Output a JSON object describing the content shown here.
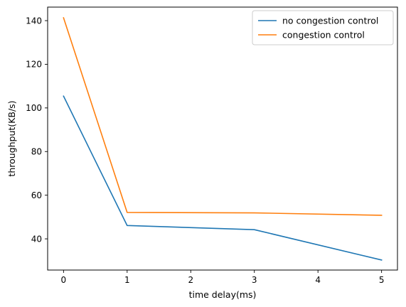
{
  "chart_data": {
    "type": "line",
    "title": "",
    "xlabel": "time delay(ms)",
    "ylabel": "throughput(KB/s)",
    "xlim": [
      -0.25,
      5.25
    ],
    "ylim": [
      25.7,
      146.2
    ],
    "xticks": [
      0,
      1,
      2,
      3,
      4,
      5
    ],
    "yticks": [
      40,
      60,
      80,
      100,
      120,
      140
    ],
    "grid": false,
    "legend_position": "top-right",
    "series": [
      {
        "name": "no congestion control",
        "color": "#1f77b4",
        "x": [
          0,
          1,
          3,
          5
        ],
        "y": [
          105.4,
          46.1,
          44.2,
          30.3
        ]
      },
      {
        "name": "congestion control",
        "color": "#ff7f0e",
        "x": [
          0,
          1,
          3,
          5
        ],
        "y": [
          141.3,
          52.1,
          51.9,
          50.8
        ]
      }
    ]
  }
}
